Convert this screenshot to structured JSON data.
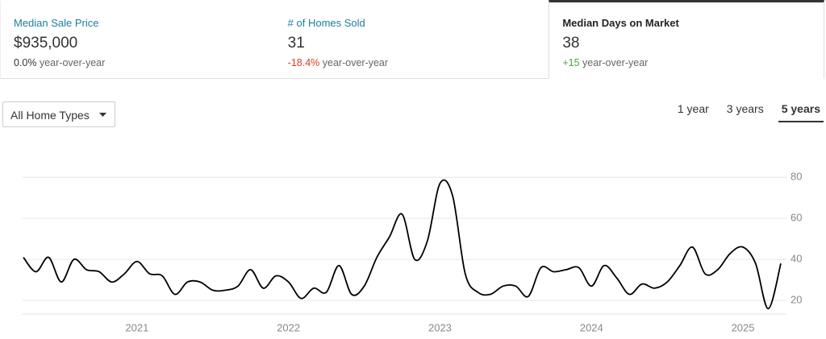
{
  "cards": [
    {
      "label": "Median Sale Price",
      "value": "$935,000",
      "change": "0.0%",
      "change_suffix": "year-over-year",
      "selected": false
    },
    {
      "label": "# of Homes Sold",
      "value": "31",
      "change": "-18.4%",
      "change_suffix": "year-over-year",
      "selected": false
    },
    {
      "label": "Median Days on Market",
      "value": "38",
      "change": "+15",
      "change_suffix": "year-over-year",
      "selected": true
    }
  ],
  "dropdown": {
    "label": "All Home Types"
  },
  "tabs": [
    {
      "label": "1 year",
      "selected": false
    },
    {
      "label": "3 years",
      "selected": false
    },
    {
      "label": "5 years",
      "selected": true
    }
  ],
  "chart_data": {
    "type": "line",
    "categories": [
      null,
      null,
      null,
      null,
      null,
      null,
      null,
      null,
      null,
      "2021",
      null,
      null,
      null,
      null,
      null,
      null,
      null,
      null,
      null,
      null,
      null,
      "2022",
      null,
      null,
      null,
      null,
      null,
      null,
      null,
      null,
      null,
      null,
      null,
      "2023",
      null,
      null,
      null,
      null,
      null,
      null,
      null,
      null,
      null,
      null,
      null,
      "2024",
      null,
      null,
      null,
      null,
      null,
      null,
      null,
      null,
      null,
      null,
      null,
      "2025",
      null,
      null,
      null
    ],
    "series": [
      {
        "name": "Median Days on Market",
        "color": "#000000",
        "values": [
          41,
          34,
          41,
          29,
          40,
          35,
          34,
          29,
          33,
          39,
          33,
          32,
          23,
          29,
          29,
          25,
          25,
          27,
          35,
          26,
          32,
          29,
          21,
          26,
          24,
          37,
          23,
          27,
          41,
          51,
          62,
          40,
          49,
          77,
          71,
          33,
          24,
          23,
          27,
          27,
          22,
          36,
          34,
          35,
          36,
          27,
          37,
          31,
          23,
          28,
          26,
          29,
          37,
          46,
          33,
          35,
          43,
          46,
          38,
          16,
          38
        ]
      }
    ],
    "ylim": [
      13,
      84
    ],
    "yticks": [
      20,
      40,
      60,
      80
    ],
    "grid": true,
    "y_axis_side": "right"
  }
}
